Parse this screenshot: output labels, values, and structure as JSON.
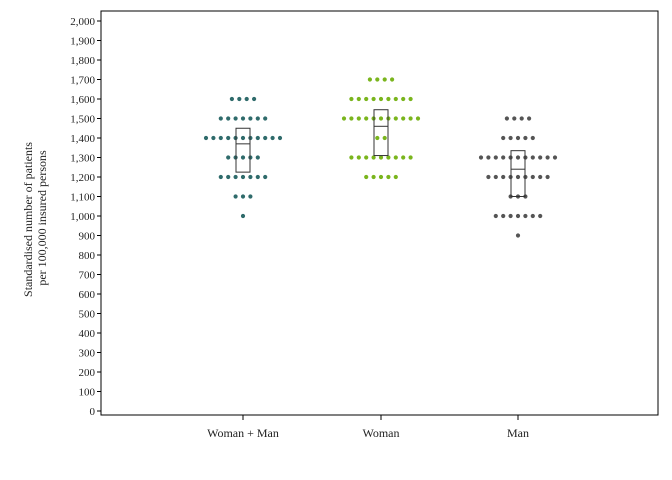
{
  "chart_data": {
    "type": "scatter",
    "subtype": "dot-strip with box (interquartile range and median)",
    "ylabel_lines": [
      "Standardised number of patients",
      "per 100,000 insured persons"
    ],
    "xlabel": "",
    "ylim": [
      0,
      2000
    ],
    "ytick_step": 100,
    "ytick_labels": [
      "0",
      "100",
      "200",
      "300",
      "400",
      "500",
      "600",
      "700",
      "800",
      "900",
      "1,000",
      "1,100",
      "1,200",
      "1,300",
      "1,400",
      "1,500",
      "1,600",
      "1,700",
      "1,800",
      "1,900",
      "2,000"
    ],
    "grid": false,
    "categories": [
      "Woman + Man",
      "Woman",
      "Man"
    ],
    "series": [
      {
        "color": "#2f6b6b",
        "points": [
          {
            "value": 1600,
            "count": 4
          },
          {
            "value": 1500,
            "count": 7
          },
          {
            "value": 1400,
            "count": 11
          },
          {
            "value": 1300,
            "count": 5
          },
          {
            "value": 1200,
            "count": 7
          },
          {
            "value": 1100,
            "count": 3
          },
          {
            "value": 1000,
            "count": 1
          }
        ],
        "box": {
          "q1": 1225,
          "median": 1370,
          "q3": 1450
        }
      },
      {
        "color": "#7ab51d",
        "points": [
          {
            "value": 1700,
            "count": 4
          },
          {
            "value": 1600,
            "count": 9
          },
          {
            "value": 1500,
            "count": 11
          },
          {
            "value": 1400,
            "count": 2
          },
          {
            "value": 1300,
            "count": 9
          },
          {
            "value": 1200,
            "count": 5
          }
        ],
        "box": {
          "q1": 1310,
          "median": 1460,
          "q3": 1545
        }
      },
      {
        "color": "#555555",
        "points": [
          {
            "value": 1500,
            "count": 4
          },
          {
            "value": 1400,
            "count": 5
          },
          {
            "value": 1300,
            "count": 11
          },
          {
            "value": 1200,
            "count": 9
          },
          {
            "value": 1100,
            "count": 3
          },
          {
            "value": 1000,
            "count": 7
          },
          {
            "value": 900,
            "count": 1
          }
        ],
        "box": {
          "q1": 1100,
          "median": 1240,
          "q3": 1335
        }
      }
    ]
  }
}
